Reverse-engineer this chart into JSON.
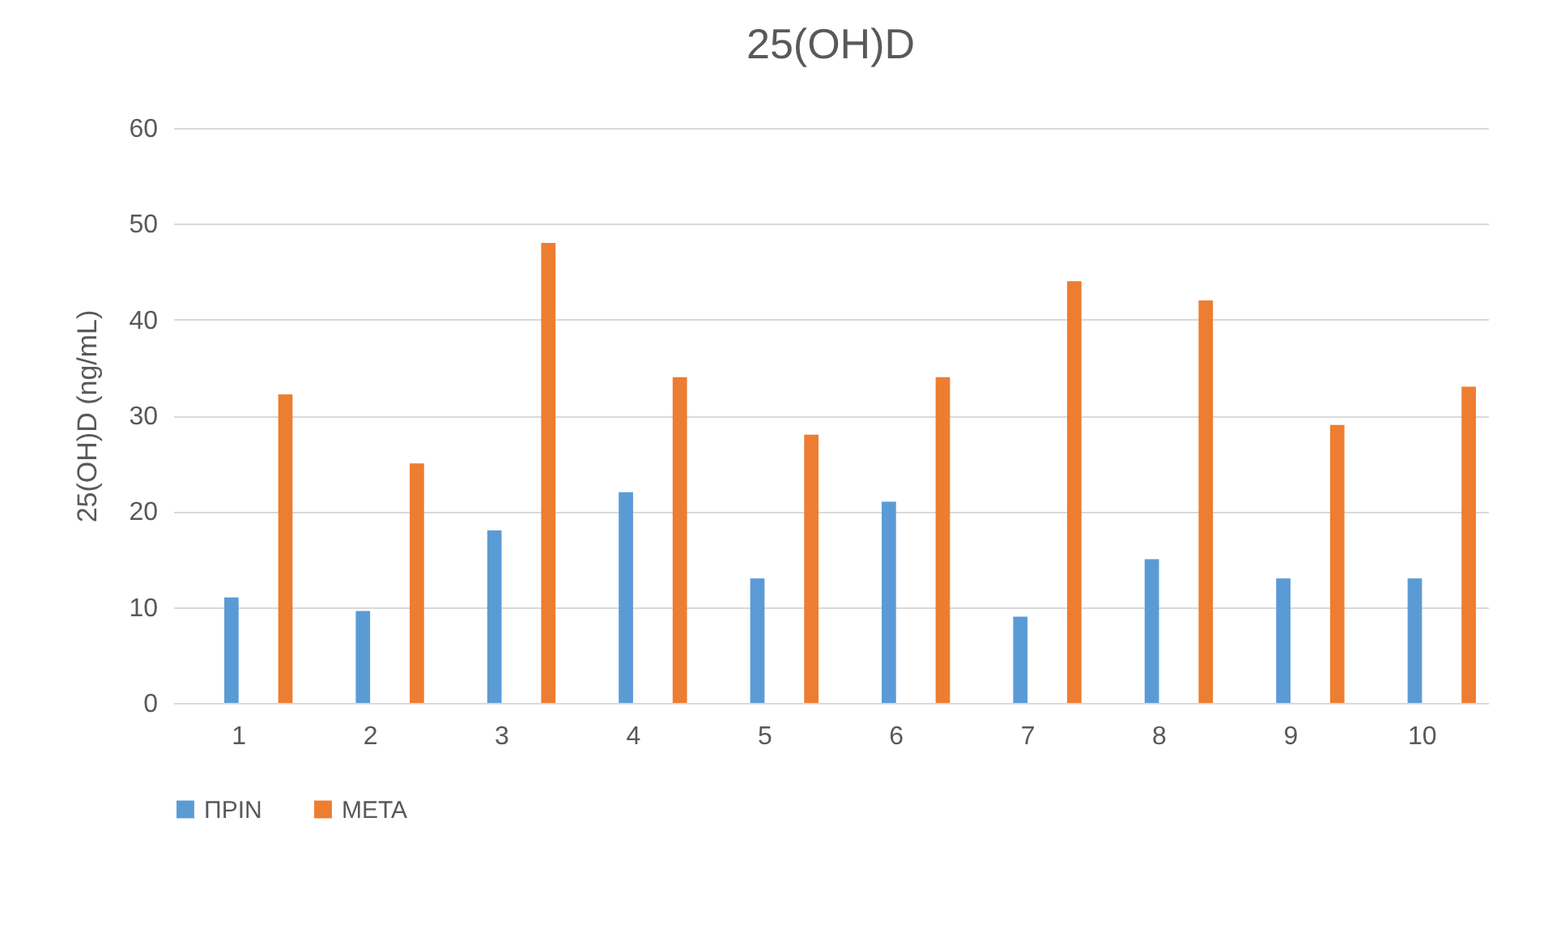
{
  "chart_data": {
    "type": "bar",
    "title": "25(OH)D",
    "ylabel": "25(OH)D (ng/mL)",
    "categories": [
      "1",
      "2",
      "3",
      "4",
      "5",
      "6",
      "7",
      "8",
      "9",
      "10"
    ],
    "series": [
      {
        "name": "ΠΡΙΝ",
        "color": "#5b9bd5",
        "values": [
          11,
          9.6,
          18,
          22,
          13,
          21,
          9,
          15,
          13,
          13
        ]
      },
      {
        "name": "ΜΕΤΑ",
        "color": "#ed7d31",
        "values": [
          32.2,
          25,
          48,
          34,
          28,
          34,
          44,
          42,
          29,
          33
        ]
      }
    ],
    "ylim": [
      0,
      60
    ],
    "yticks": [
      0,
      10,
      20,
      30,
      40,
      50,
      60
    ],
    "grid": "y",
    "legend": "bottom"
  }
}
